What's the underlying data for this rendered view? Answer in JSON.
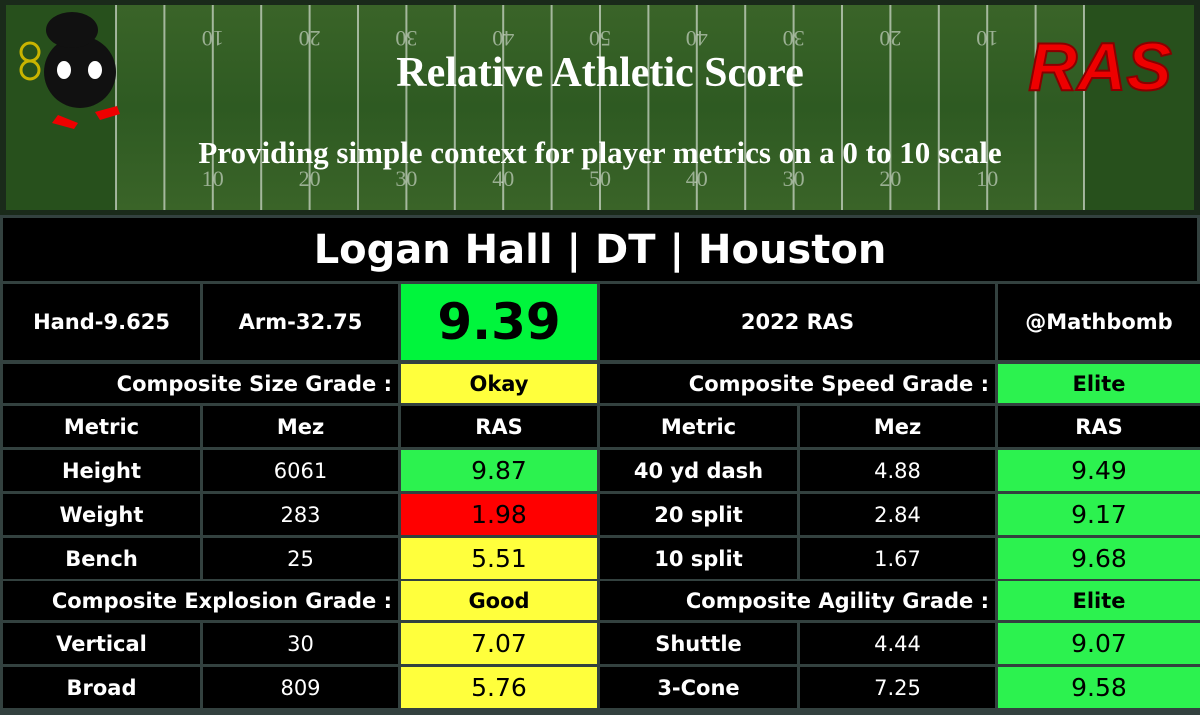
{
  "header": {
    "title": "Relative Athletic Score",
    "subtitle": "Providing simple context for player metrics on a 0 to 10 scale",
    "logo": "RAS",
    "yard_numbers": [
      10,
      20,
      30,
      40,
      50,
      40,
      30,
      20,
      10
    ]
  },
  "player": "Logan Hall | DT | Houston",
  "summary": {
    "hand": "Hand-9.625",
    "arm": "Arm-32.75",
    "score": 9.39,
    "score_color": "#00f53c",
    "year": "2022 RAS",
    "handle": "@Mathbomb"
  },
  "grid": {
    "columns": [
      "Metric",
      "Mez",
      "RAS"
    ],
    "sections": [
      {
        "label": "Composite Size Grade :",
        "grade": "Okay",
        "grade_color": "#ffff3c",
        "rows": [
          {
            "metric": "Height",
            "mez": 6061,
            "ras": 9.87,
            "color": "#2cf24f"
          },
          {
            "metric": "Weight",
            "mez": 283,
            "ras": 1.98,
            "color": "#ff0000"
          },
          {
            "metric": "Bench",
            "mez": 25,
            "ras": 5.51,
            "color": "#ffff3c"
          }
        ]
      },
      {
        "label": "Composite Speed Grade :",
        "grade": "Elite",
        "grade_color": "#2cf24f",
        "rows": [
          {
            "metric": "40 yd dash",
            "mez": 4.88,
            "ras": 9.49,
            "color": "#2cf24f"
          },
          {
            "metric": "20 split",
            "mez": 2.84,
            "ras": 9.17,
            "color": "#2cf24f"
          },
          {
            "metric": "10 split",
            "mez": 1.67,
            "ras": 9.68,
            "color": "#2cf24f"
          }
        ]
      },
      {
        "label": "Composite Explosion Grade :",
        "grade": "Good",
        "grade_color": "#ffff3c",
        "rows": [
          {
            "metric": "Vertical",
            "mez": 30,
            "ras": 7.07,
            "color": "#ffff3c"
          },
          {
            "metric": "Broad",
            "mez": 809,
            "ras": 5.76,
            "color": "#ffff3c"
          }
        ]
      },
      {
        "label": "Composite Agility Grade :",
        "grade": "Elite",
        "grade_color": "#2cf24f",
        "rows": [
          {
            "metric": "Shuttle",
            "mez": 4.44,
            "ras": 9.07,
            "color": "#2cf24f"
          },
          {
            "metric": "3-Cone",
            "mez": 7.25,
            "ras": 9.58,
            "color": "#2cf24f"
          }
        ]
      }
    ]
  }
}
